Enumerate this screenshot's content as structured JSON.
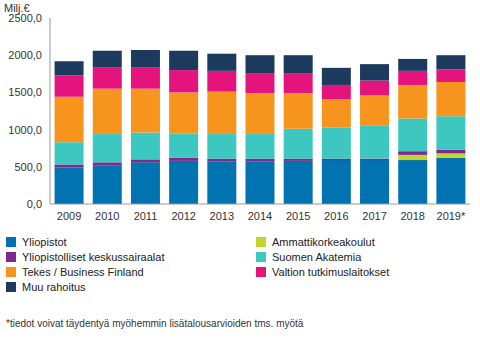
{
  "chart_data": {
    "type": "bar",
    "stacked": true,
    "y_label": "Milj.€",
    "annotations": [
      "*tiedot voivat täydentyä myöhemmin lisätalousarvioiden tms. myötä"
    ],
    "categories": [
      "2009",
      "2010",
      "2011",
      "2012",
      "2013",
      "2014",
      "2015",
      "2016",
      "2017",
      "2018",
      "2019*"
    ],
    "series": [
      {
        "name": "Yliopistot",
        "color": "#0073b0",
        "values": [
          490,
          520,
          560,
          580,
          570,
          570,
          580,
          590,
          590,
          590,
          620
        ]
      },
      {
        "name": "Ammattikorkeakoulut",
        "color": "#c3d52d",
        "values": [
          0,
          0,
          0,
          0,
          0,
          0,
          0,
          0,
          0,
          70,
          60
        ]
      },
      {
        "name": "Yliopistolliset keskussairaalat",
        "color": "#7d2a8a",
        "values": [
          40,
          40,
          40,
          40,
          40,
          40,
          30,
          20,
          20,
          50,
          50
        ]
      },
      {
        "name": "Suomen Akatemia",
        "color": "#3cc8c0",
        "values": [
          300,
          380,
          360,
          330,
          330,
          330,
          400,
          420,
          440,
          440,
          450
        ]
      },
      {
        "name": "Tekes / Business Finland",
        "color": "#f7941d",
        "values": [
          610,
          610,
          590,
          550,
          570,
          550,
          480,
          380,
          410,
          450,
          460
        ]
      },
      {
        "name": "Valtion tutkimuslaitokset",
        "color": "#e4147c",
        "values": [
          290,
          290,
          290,
          300,
          280,
          270,
          270,
          190,
          200,
          190,
          170
        ]
      },
      {
        "name": "Muu rahoitus",
        "color": "#1b3a5e",
        "values": [
          190,
          220,
          230,
          260,
          230,
          240,
          240,
          230,
          220,
          160,
          190
        ]
      }
    ],
    "ylim": [
      0,
      2500
    ],
    "yticks": [
      {
        "value": 0,
        "label": "0,0"
      },
      {
        "value": 500,
        "label": "500,0"
      },
      {
        "value": 1000,
        "label": "1000,0"
      },
      {
        "value": 1500,
        "label": "1500,0"
      },
      {
        "value": 2000,
        "label": "2000,0"
      },
      {
        "value": 2500,
        "label": "2500,0"
      }
    ],
    "grid": false,
    "legend": "bottom"
  }
}
